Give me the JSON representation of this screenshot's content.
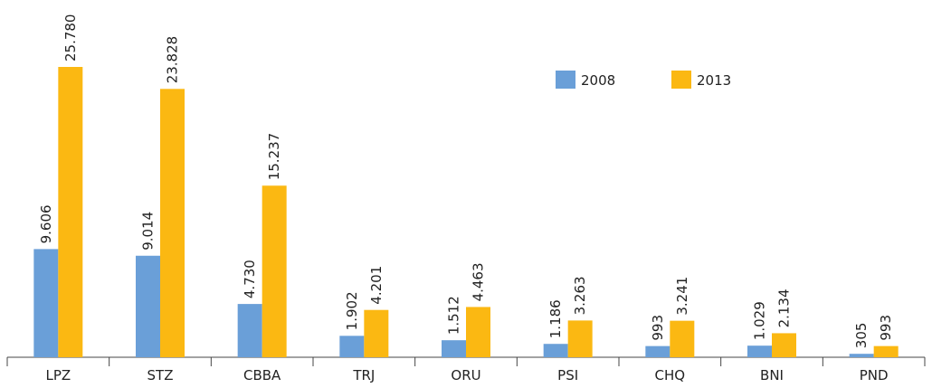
{
  "chart_data": {
    "type": "bar",
    "categories": [
      "LPZ",
      "STZ",
      "CBBA",
      "TRJ",
      "ORU",
      "PSI",
      "CHQ",
      "BNI",
      "PND"
    ],
    "series": [
      {
        "name": "2008",
        "color": "#6a9fd8",
        "values": [
          9606,
          9014,
          4730,
          1902,
          1512,
          1186,
          993,
          1029,
          305
        ],
        "value_labels": [
          "9.606",
          "9.014",
          "4.730",
          "1.902",
          "1.512",
          "1.186",
          "993",
          "1.029",
          "305"
        ]
      },
      {
        "name": "2013",
        "color": "#fbb812",
        "values": [
          25780,
          23828,
          15237,
          4201,
          4463,
          3263,
          3241,
          2134,
          993
        ],
        "value_labels": [
          "25.780",
          "23.828",
          "15.237",
          "4.201",
          "4.463",
          "3.263",
          "3.241",
          "2.134",
          "993"
        ]
      }
    ],
    "legend": "top-right"
  }
}
